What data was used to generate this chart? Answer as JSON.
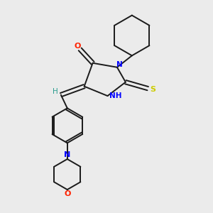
{
  "bg_color": "#ebebeb",
  "bond_color": "#1a1a1a",
  "N_color": "#0000ff",
  "O_color": "#ff2200",
  "S_color": "#cccc00",
  "H_color": "#2a9d8f",
  "line_width": 1.4,
  "figsize": [
    3.0,
    3.0
  ],
  "dpi": 100,
  "xlim": [
    0,
    10
  ],
  "ylim": [
    0,
    10
  ]
}
